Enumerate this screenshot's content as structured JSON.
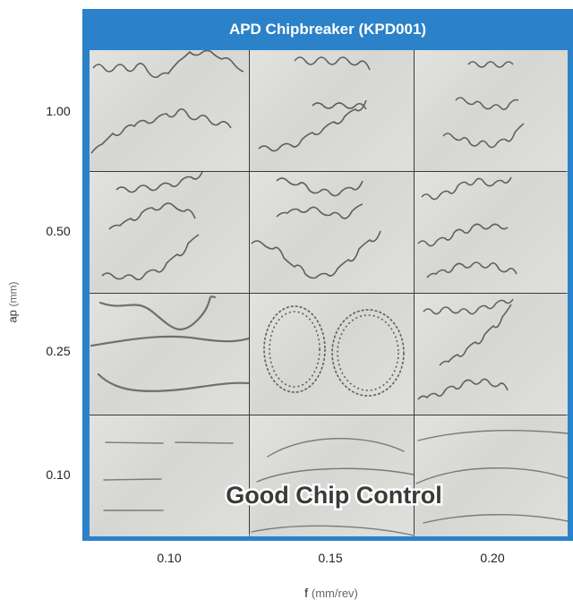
{
  "header": {
    "title": "APD Chipbreaker (KPD001)"
  },
  "y_axis": {
    "label": "ap",
    "unit": "(mm)",
    "ticks": [
      "1.00",
      "0.50",
      "0.25",
      "0.10"
    ]
  },
  "x_axis": {
    "label": "f",
    "unit": "(mm/rev)",
    "ticks": [
      "0.10",
      "0.15",
      "0.20"
    ]
  },
  "banner": {
    "text": "Good Chip Control"
  },
  "colors": {
    "frame": "#2b82c9",
    "grid_line": "#3a3a3a",
    "chip": "#6f6f6f"
  }
}
